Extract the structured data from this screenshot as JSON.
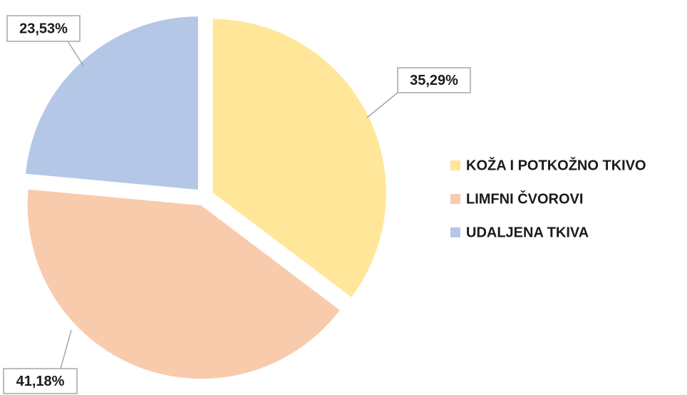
{
  "chart_data": {
    "type": "pie",
    "categories": [
      "KOŽA I POTKOŽNO TKIVO",
      "LIMFNI ČVOROVI",
      "UDALJENA TKIVA"
    ],
    "values": [
      35.29,
      41.18,
      23.53
    ],
    "value_labels": [
      "35,29%",
      "41,18%",
      "23,53%"
    ],
    "colors": [
      "#FFE699",
      "#F8CBAD",
      "#B4C7E7"
    ],
    "legend": "right"
  }
}
